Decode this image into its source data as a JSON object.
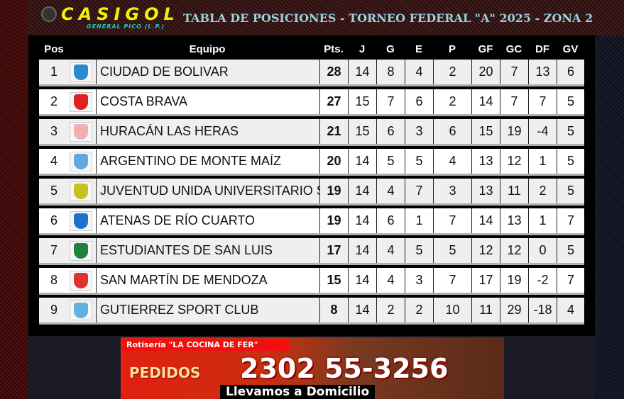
{
  "header": {
    "brand": "CASIGOL",
    "brand_sub": "GENERAL PICO (L.P.)",
    "title": "TABLA DE POSICIONES - TORNEO FEDERAL \"A\" 2025 - ZONA 2"
  },
  "columns": [
    "Pos",
    "Equipo",
    "Pts.",
    "J",
    "G",
    "E",
    "P",
    "GF",
    "GC",
    "DF",
    "GV"
  ],
  "rows": [
    {
      "pos": "1",
      "team": "CIUDAD DE BOLIVAR",
      "pts": "28",
      "j": "14",
      "g": "8",
      "e": "4",
      "p": "2",
      "gf": "20",
      "gc": "7",
      "df": "13",
      "gv": "6",
      "color": "#2a8ad0"
    },
    {
      "pos": "2",
      "team": "COSTA BRAVA",
      "pts": "27",
      "j": "15",
      "g": "7",
      "e": "6",
      "p": "2",
      "gf": "14",
      "gc": "7",
      "df": "7",
      "gv": "5",
      "color": "#e02020"
    },
    {
      "pos": "3",
      "team": "HURACÁN LAS HERAS",
      "pts": "21",
      "j": "15",
      "g": "6",
      "e": "3",
      "p": "6",
      "gf": "15",
      "gc": "19",
      "df": "-4",
      "gv": "5",
      "color": "#f0b0b0"
    },
    {
      "pos": "4",
      "team": "ARGENTINO DE MONTE MAÍZ",
      "pts": "20",
      "j": "14",
      "g": "5",
      "e": "5",
      "p": "4",
      "gf": "13",
      "gc": "12",
      "df": "1",
      "gv": "5",
      "color": "#60a8e0"
    },
    {
      "pos": "5",
      "team": "JUVENTUD UNIDA UNIVERSITARIO S.",
      "pts": "19",
      "j": "14",
      "g": "4",
      "e": "7",
      "p": "3",
      "gf": "13",
      "gc": "11",
      "df": "2",
      "gv": "5",
      "color": "#c8c020"
    },
    {
      "pos": "6",
      "team": "ATENAS DE RÍO CUARTO",
      "pts": "19",
      "j": "14",
      "g": "6",
      "e": "1",
      "p": "7",
      "gf": "14",
      "gc": "13",
      "df": "1",
      "gv": "7",
      "color": "#2070d0"
    },
    {
      "pos": "7",
      "team": "ESTUDIANTES DE SAN LUIS",
      "pts": "17",
      "j": "14",
      "g": "4",
      "e": "5",
      "p": "5",
      "gf": "12",
      "gc": "12",
      "df": "0",
      "gv": "5",
      "color": "#208040"
    },
    {
      "pos": "8",
      "team": "SAN MARTÍN DE MENDOZA",
      "pts": "15",
      "j": "14",
      "g": "4",
      "e": "3",
      "p": "7",
      "gf": "17",
      "gc": "19",
      "df": "-2",
      "gv": "7",
      "color": "#e03030"
    },
    {
      "pos": "9",
      "team": "GUTIERREZ SPORT CLUB",
      "pts": "8",
      "j": "14",
      "g": "2",
      "e": "2",
      "p": "10",
      "gf": "11",
      "gc": "29",
      "df": "-18",
      "gv": "4",
      "color": "#60b0e0"
    }
  ],
  "ad": {
    "line1": "Rotisería \"LA COCINA DE FER\"",
    "pedidos": "PEDIDOS",
    "phone": "2302 55-3256",
    "delivery": "Llevamos a Domicilio"
  }
}
